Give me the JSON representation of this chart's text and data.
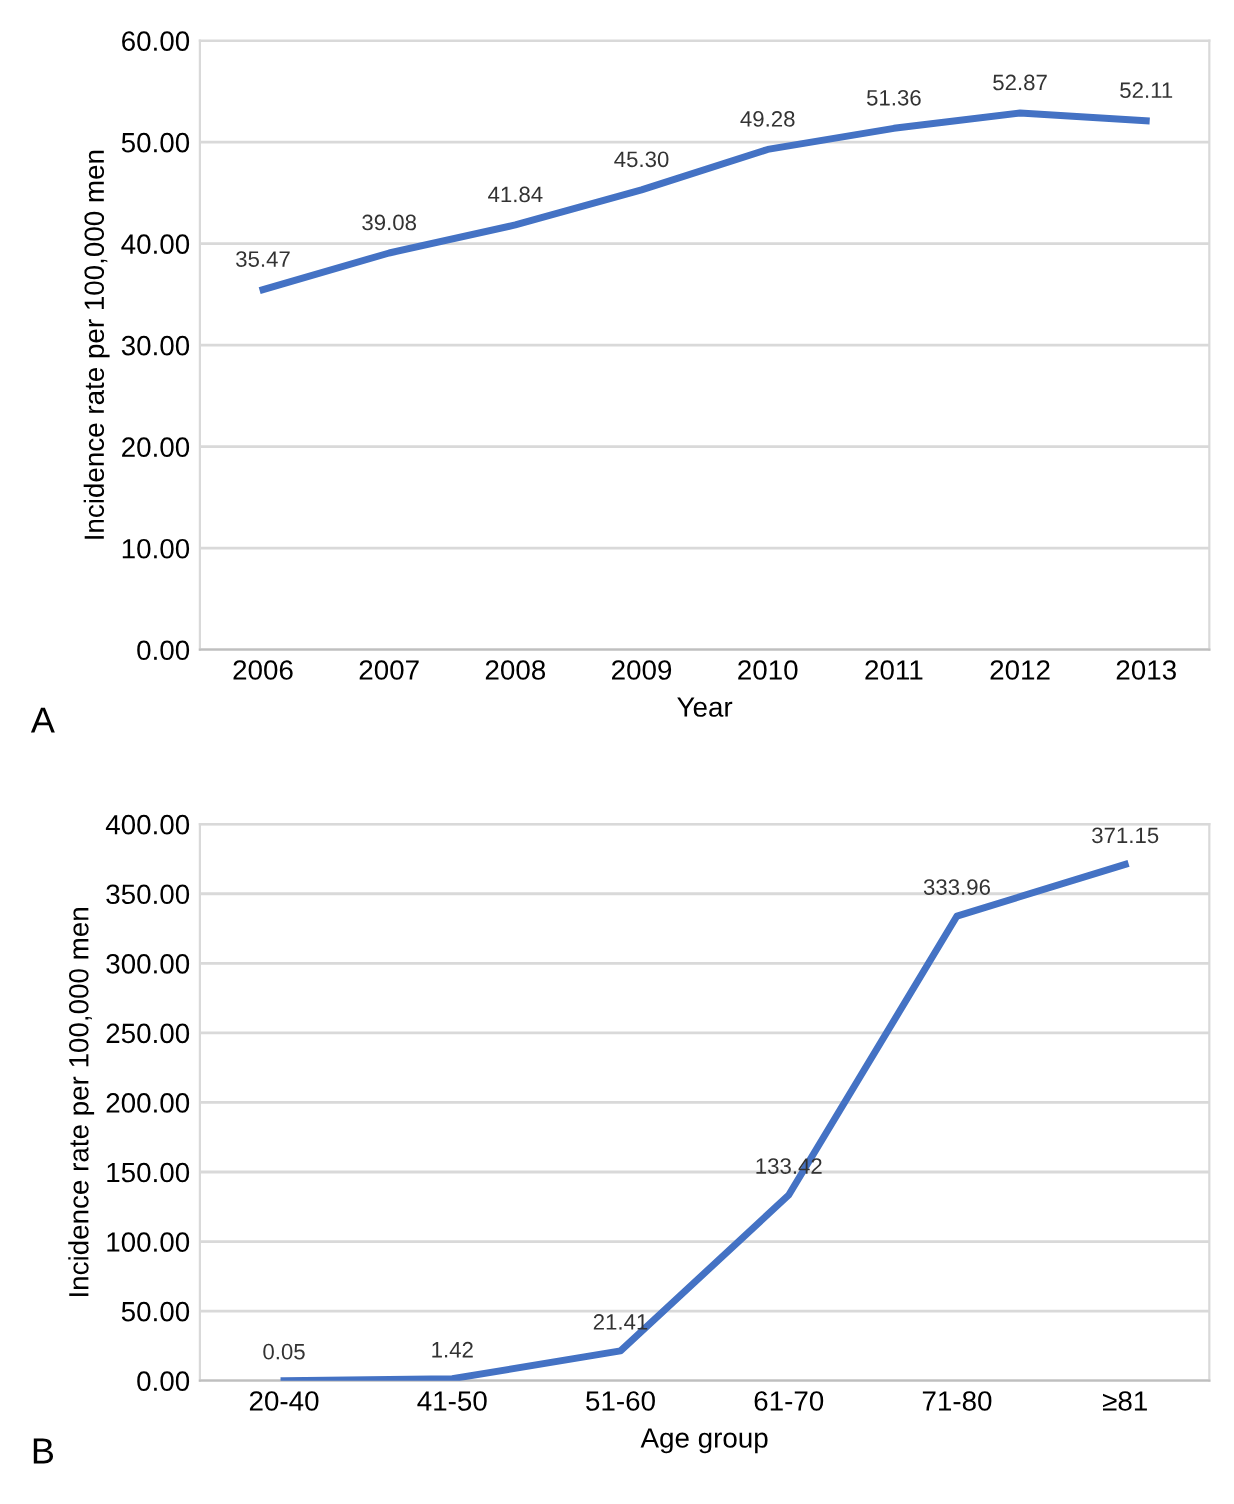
{
  "chart_data": [
    {
      "type": "line",
      "xlabel": "Year",
      "ylabel": "Incidence rate per 100,000 men",
      "categories": [
        "2006",
        "2007",
        "2008",
        "2009",
        "2010",
        "2011",
        "2012",
        "2013"
      ],
      "series": [
        {
          "color": "#4472c4",
          "values": [
            35.47,
            39.08,
            41.84,
            45.3,
            49.28,
            51.36,
            52.87,
            52.11
          ],
          "value_labels": [
            "35.47",
            "39.08",
            "41.84",
            "45.30",
            "49.28",
            "51.36",
            "52.87",
            "52.11"
          ]
        }
      ],
      "ylim": [
        0,
        60
      ],
      "yticks": [
        {
          "value": 0,
          "label": "0.00"
        },
        {
          "value": 10,
          "label": "10.00"
        },
        {
          "value": 20,
          "label": "20.00"
        },
        {
          "value": 30,
          "label": "30.00"
        },
        {
          "value": 40,
          "label": "40.00"
        },
        {
          "value": 50,
          "label": "50.00"
        },
        {
          "value": 60,
          "label": "60.00"
        }
      ],
      "grid": "y",
      "annotations": [
        "A"
      ]
    },
    {
      "type": "line",
      "xlabel": "Age group",
      "ylabel": "Incidence rate per 100,000 men",
      "categories": [
        "20-40",
        "41-50",
        "51-60",
        "61-70",
        "71-80",
        "≥81"
      ],
      "series": [
        {
          "color": "#4472c4",
          "values": [
            0.05,
            1.42,
            21.41,
            133.42,
            333.96,
            371.15
          ],
          "value_labels": [
            "0.05",
            "1.42",
            "21.41",
            "133.42",
            "333.96",
            "371.15"
          ]
        }
      ],
      "ylim": [
        0,
        400
      ],
      "yticks": [
        {
          "value": 0,
          "label": "0.00"
        },
        {
          "value": 50,
          "label": "50.00"
        },
        {
          "value": 100,
          "label": "100.00"
        },
        {
          "value": 150,
          "label": "150.00"
        },
        {
          "value": 200,
          "label": "200.00"
        },
        {
          "value": 250,
          "label": "250.00"
        },
        {
          "value": 300,
          "label": "300.00"
        },
        {
          "value": 350,
          "label": "350.00"
        },
        {
          "value": 400,
          "label": "400.00"
        }
      ],
      "grid": "y",
      "annotations": [
        "B"
      ]
    }
  ]
}
